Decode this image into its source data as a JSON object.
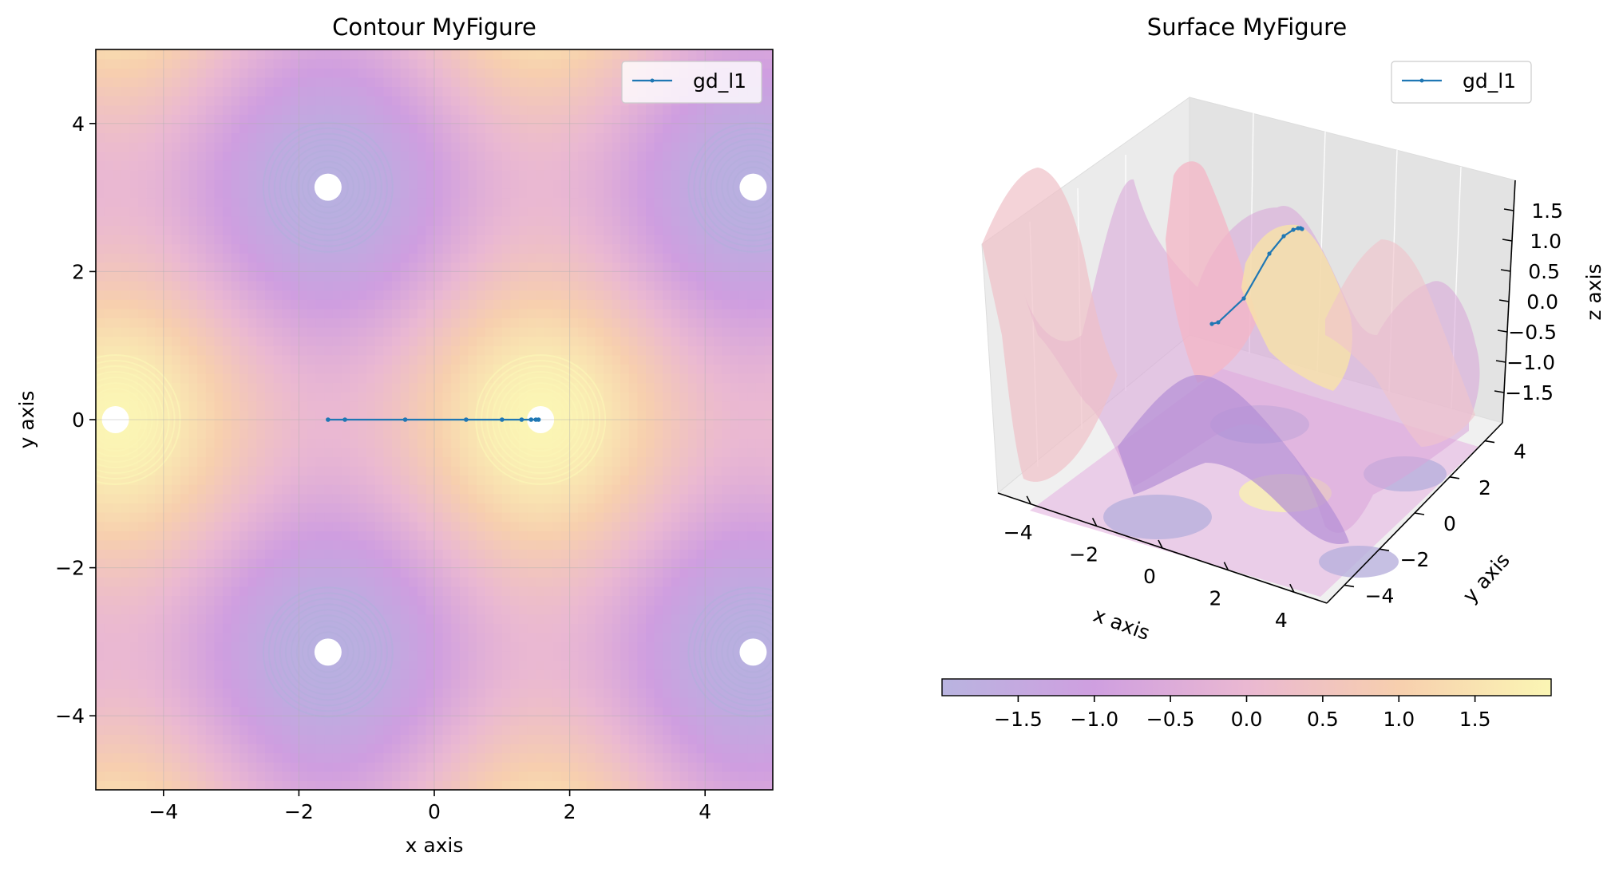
{
  "chart_data": [
    {
      "type": "contour",
      "title": "Contour MyFigure",
      "xlabel": "x axis",
      "ylabel": "y axis",
      "xlim": [
        -5,
        5
      ],
      "ylim": [
        -5,
        5
      ],
      "x_ticks": [
        -4,
        -2,
        0,
        2,
        4
      ],
      "y_ticks": [
        -4,
        -2,
        0,
        2,
        4
      ],
      "x_tick_labels": [
        "−4",
        "−2",
        "0",
        "2",
        "4"
      ],
      "y_tick_labels": [
        "−4",
        "−2",
        "0",
        "2",
        "4"
      ],
      "function": "sin(x)*cos(y) + cos(x)*sin(y)... z = f(x,y) in [-2, 2]",
      "colormap": "plasma (light)",
      "grid": true,
      "legend": {
        "position": "top-right",
        "entries": [
          "gd_l1"
        ]
      },
      "series": [
        {
          "name": "gd_l1",
          "color": "#1f77b4",
          "points": [
            [
              -1.57,
              0
            ],
            [
              -1.32,
              0
            ],
            [
              -0.43,
              0
            ],
            [
              0.47,
              0
            ],
            [
              1.0,
              0
            ],
            [
              1.29,
              0
            ],
            [
              1.43,
              0
            ],
            [
              1.5,
              0
            ],
            [
              1.54,
              0
            ]
          ]
        }
      ]
    },
    {
      "type": "surface",
      "title": "Surface MyFigure",
      "xlabel": "x axis",
      "ylabel": "y axis",
      "zlabel": "z axis",
      "xlim": [
        -5,
        5
      ],
      "ylim": [
        -5,
        5
      ],
      "zlim": [
        -2,
        2
      ],
      "x_tick_labels": [
        "−4",
        "−2",
        "0",
        "2",
        "4"
      ],
      "y_tick_labels": [
        "−4",
        "−2",
        "0",
        "2",
        "4"
      ],
      "z_tick_labels": [
        "1.5",
        "1.0",
        "0.5",
        "0.0",
        "−0.5",
        "−1.0",
        "−1.5"
      ],
      "legend": {
        "position": "top-right",
        "entries": [
          "gd_l1"
        ]
      },
      "series": [
        {
          "name": "gd_l1",
          "color": "#1f77b4",
          "points": [
            [
              -1.57,
              0
            ],
            [
              -1.32,
              0
            ],
            [
              -0.43,
              0
            ],
            [
              0.47,
              0
            ],
            [
              1.0,
              0
            ],
            [
              1.29,
              0
            ],
            [
              1.43,
              0
            ],
            [
              1.5,
              0
            ],
            [
              1.54,
              0
            ]
          ]
        }
      ],
      "colorbar": {
        "range": [
          -2,
          2
        ],
        "tick_values": [
          -1.5,
          -1.0,
          -0.5,
          0.0,
          0.5,
          1.0,
          1.5
        ],
        "tick_labels": [
          "−1.5",
          "−1.0",
          "−0.5",
          "0.0",
          "0.5",
          "1.0",
          "1.5"
        ]
      }
    }
  ]
}
